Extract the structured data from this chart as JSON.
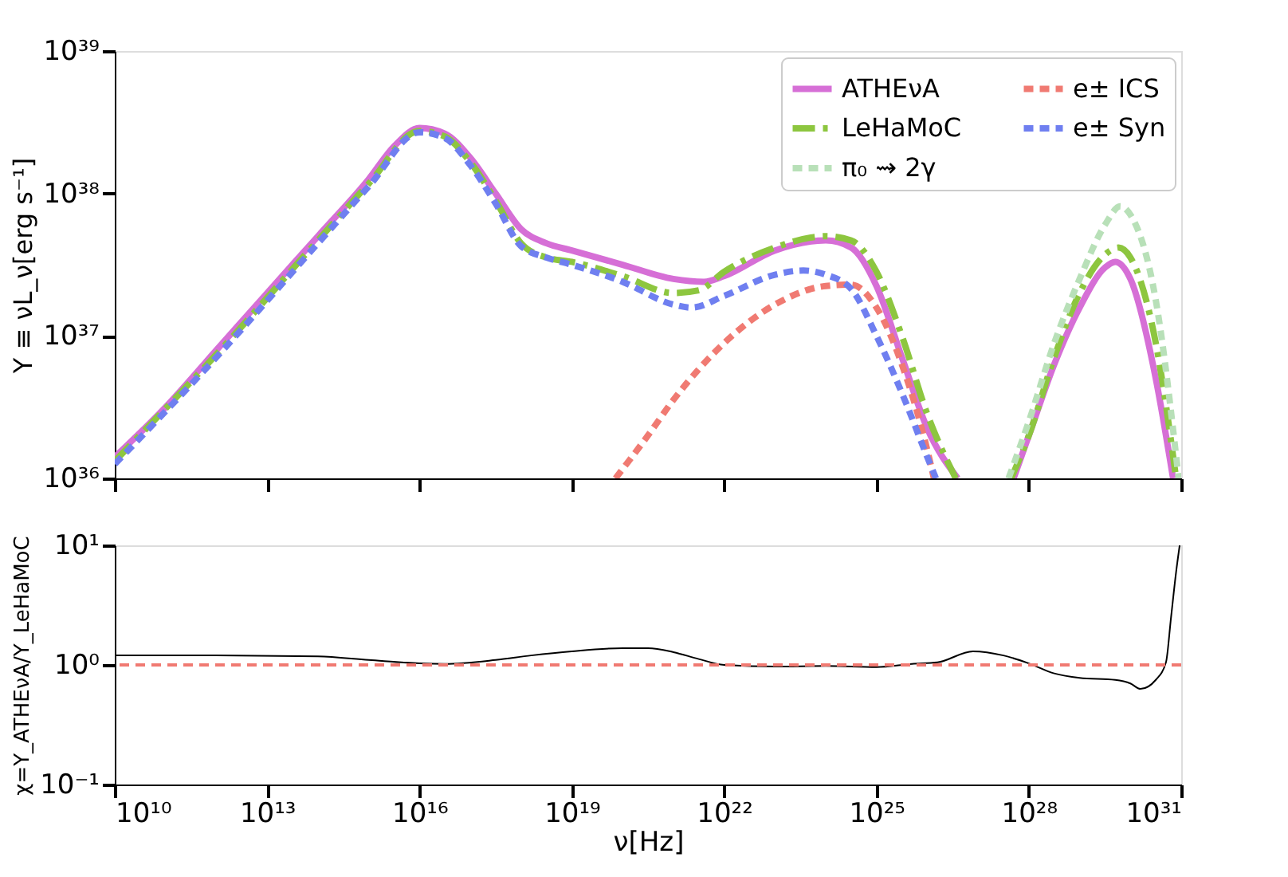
{
  "chart_data": [
    {
      "type": "line",
      "ylabel": "Y ≡ νL_ν[erg s⁻¹]",
      "log": "xy",
      "grid": false,
      "legend": "top right",
      "tick_labels": "y",
      "xlim": [
        10000000000.0,
        1e+31
      ],
      "xticks": [
        {
          "value": 10000000000.0,
          "label": null
        },
        {
          "value": 10000000000000.0,
          "label": null
        },
        {
          "value": 1e+16,
          "label": null
        },
        {
          "value": 1e+19,
          "label": null
        },
        {
          "value": 1e+22,
          "label": null
        },
        {
          "value": 1e+25,
          "label": null
        },
        {
          "value": 1e+28,
          "label": null
        },
        {
          "value": 1e+31,
          "label": null
        }
      ],
      "ylim": [
        1e+36,
        1e+39
      ],
      "yticks": [
        {
          "value": 1e+36,
          "label": "10³⁶"
        },
        {
          "value": 1e+37,
          "label": "10³⁷"
        },
        {
          "value": 1e+38,
          "label": "10³⁸"
        },
        {
          "value": 1e+39,
          "label": "10³⁹"
        }
      ],
      "series": [
        {
          "name": "ATHEνA",
          "color": "#d66fd6",
          "line_style": "solid",
          "x": [
            10000000000.0,
            100000000000.0,
            1000000000000.0,
            10000000000000.0,
            100000000000000.0,
            1000000000000000.0,
            3160000000000000.0,
            1e+16,
            3.16e+16,
            1e+17,
            3.16e+17,
            1e+18,
            3.16e+18,
            1e+19,
            1e+20,
            1e+21,
            3.98e+21,
            1e+22,
            1e+23,
            1e+24,
            3.16e+24,
            1e+25,
            3.16e+25,
            1e+26,
            3.98e+26,
            2e+27,
            5.01e+27,
            1e+28,
            3.16e+28,
            1e+29,
            3.16e+29,
            5.01e+29,
            1e+30,
            3.16e+30,
            6.92e+30
          ],
          "values": [
            1.41e+36,
            3.16e+36,
            7.94e+36,
            2e+37,
            5.01e+37,
            1.26e+38,
            2.14e+38,
            2.88e+38,
            2.63e+38,
            1.78e+38,
            1e+38,
            5.62e+37,
            4.47e+37,
            3.98e+37,
            3.16e+37,
            2.51e+37,
            2.4e+37,
            2.63e+37,
            3.98e+37,
            4.68e+37,
            4.17e+37,
            2.24e+37,
            7.08e+36,
            2.24e+36,
            1e+36,
            null,
            1e+36,
            2e+36,
            6.31e+36,
            1.58e+37,
            3.02e+37,
            3.31e+37,
            2.51e+37,
            5.01e+36,
            1e+36
          ]
        },
        {
          "name": "LeHaMoC",
          "color": "#8dc63f",
          "line_style": "dashdot",
          "x": [
            10000000000.0,
            1000000000000.0,
            100000000000000.0,
            1000000000000000.0,
            1e+16,
            3.16e+16,
            1e+17,
            3.16e+17,
            1e+18,
            3.16e+18,
            1e+19,
            1e+20,
            1e+21,
            3.16e+21,
            1e+22,
            1e+23,
            1e+24,
            3.16e+24,
            1e+25,
            3.16e+25,
            1e+26,
            3.63e+26,
            2e+27,
            4.47e+27,
            1e+28,
            3.16e+28,
            1e+29,
            3.16e+29,
            5.89e+29,
            1e+30,
            3.16e+30,
            7.94e+30
          ],
          "values": [
            1.32e+36,
            7.41e+36,
            4.68e+37,
            1.17e+38,
            2.75e+38,
            2.51e+38,
            1.66e+38,
            8.91e+37,
            4.47e+37,
            3.55e+37,
            3.31e+37,
            2.63e+37,
            2e+37,
            2.09e+37,
            2.82e+37,
            4.17e+37,
            5.01e+37,
            4.68e+37,
            2.82e+37,
            1e+37,
            2.82e+36,
            1e+36,
            null,
            1e+36,
            2e+36,
            7.08e+36,
            2e+37,
            3.72e+37,
            4.17e+37,
            3.55e+37,
            8.91e+36,
            1e+36
          ]
        },
        {
          "name": "π₀ ⇝ 2γ",
          "color": "#b8e0b8",
          "line_style": "dashed",
          "x": [
            3.98e+27,
            1e+28,
            3.16e+28,
            1e+29,
            3.16e+29,
            6.31e+29,
            1e+30,
            3.16e+30,
            8.91e+30
          ],
          "values": [
            1e+36,
            2.51e+36,
            8.91e+36,
            2.51e+37,
            6.03e+37,
            8.13e+37,
            7.08e+37,
            1.78e+37,
            1e+36
          ]
        },
        {
          "name": "e± ICS",
          "color": "#f07a72",
          "line_style": "dashed",
          "x": [
            7.24e+19,
            3.16e+20,
            1e+21,
            1e+22,
            1e+23,
            1e+24,
            3.16e+24,
            1e+25,
            3.16e+25,
            1e+26,
            1.35e+26
          ],
          "values": [
            1e+36,
            2e+36,
            3.55e+36,
            8.91e+36,
            1.66e+37,
            2.24e+37,
            2.29e+37,
            1.58e+37,
            6.31e+36,
            1.58e+36,
            1e+36
          ]
        },
        {
          "name": "e± Syn",
          "color": "#6f7ff0",
          "line_style": "dashed",
          "x": [
            10000000000.0,
            1000000000000.0,
            100000000000000.0,
            1000000000000000.0,
            1e+16,
            3.16e+16,
            1e+17,
            3.16e+17,
            1e+18,
            3.16e+18,
            1e+19,
            1e+20,
            1e+21,
            2.29e+21,
            1e+22,
            1e+23,
            3.63e+23,
            1e+24,
            3.16e+24,
            1e+25,
            3.16e+25,
            1e+26,
            1.48e+26
          ],
          "values": [
            1.26e+36,
            7.08e+36,
            4.47e+37,
            1.12e+38,
            2.69e+38,
            2.45e+38,
            1.58e+38,
            8.51e+37,
            4.27e+37,
            3.55e+37,
            3.16e+37,
            2.4e+37,
            1.66e+37,
            1.58e+37,
            1.91e+37,
            2.69e+37,
            2.88e+37,
            2.69e+37,
            2.14e+37,
            1e+37,
            3.98e+36,
            1.41e+36,
            1e+36
          ]
        }
      ]
    },
    {
      "type": "line",
      "xlabel": "ν[Hz]",
      "ylabel": "χ=Y_ATHEνA/Y_LeHaMoC",
      "log": "xy",
      "grid": false,
      "xlim": [
        10000000000.0,
        1e+31
      ],
      "xticks": [
        {
          "value": 10000000000.0,
          "label": "10¹⁰"
        },
        {
          "value": 10000000000000.0,
          "label": "10¹³"
        },
        {
          "value": 1e+16,
          "label": "10¹⁶"
        },
        {
          "value": 1e+19,
          "label": "10¹⁹"
        },
        {
          "value": 1e+22,
          "label": "10²²"
        },
        {
          "value": 1e+25,
          "label": "10²⁵"
        },
        {
          "value": 1e+28,
          "label": "10²⁸"
        },
        {
          "value": 1e+31,
          "label": "10³¹"
        }
      ],
      "ylim": [
        0.1,
        10
      ],
      "yticks": [
        {
          "value": 0.1,
          "label": "10⁻¹"
        },
        {
          "value": 1,
          "label": "10⁰"
        },
        {
          "value": 10,
          "label": "10¹"
        }
      ],
      "ref_lines": [
        {
          "axis": "y",
          "value": 1,
          "color": "#f07a72",
          "line_style": "dashed"
        }
      ],
      "series": [
        {
          "color": "#000000",
          "line_style": "solid",
          "x": [
            10000000000.0,
            1000000000000.0,
            100000000000000.0,
            1000000000000000.0,
            1e+16,
            3.16e+16,
            3.16e+17,
            1.58e+18,
            1e+19,
            1e+20,
            3.16e+20,
            1e+21,
            3.16e+21,
            1e+22,
            1e+23,
            1e+24,
            1e+25,
            5.01e+25,
            1.58e+26,
            7.94e+26,
            3.16e+27,
            1e+28,
            3.16e+28,
            1e+29,
            5.01e+29,
            1e+30,
            1.58e+30,
            3.16e+30,
            5.01e+30,
            6.31e+30,
            7.94e+30,
            9.33e+30
          ],
          "values": [
            1.2,
            1.2,
            1.18,
            1.1,
            1.03,
            1.02,
            1.1,
            1.2,
            1.3,
            1.38,
            1.38,
            1.28,
            1.12,
            1.0,
            0.97,
            0.98,
            0.96,
            1.02,
            1.05,
            1.3,
            1.2,
            1.03,
            0.85,
            0.78,
            0.75,
            0.7,
            0.63,
            0.75,
            1.05,
            2.5,
            6,
            10
          ]
        }
      ]
    }
  ]
}
